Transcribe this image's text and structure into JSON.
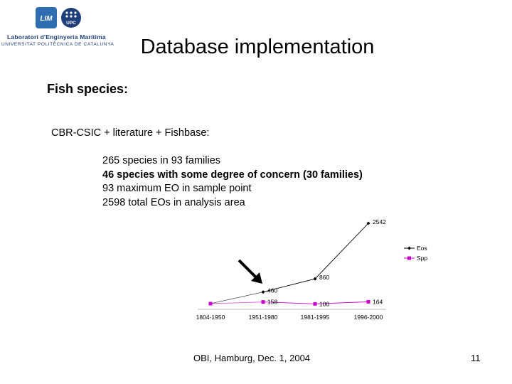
{
  "logo": {
    "name": "Laboratori d'Enginyeria Marítima",
    "sub": "UNIVERSITAT POLITÈCNICA DE CATALUNYA",
    "mark1": "LIM",
    "mark2": "UPC",
    "colors": {
      "navy": "#1f3f7a",
      "blue": "#2e6db0"
    }
  },
  "slide": {
    "title": "Database implementation",
    "heading": "Fish species:",
    "source": "CBR-CSIC + literature + Fishbase:",
    "facts": [
      "265 species in 93 families",
      "46 species with some degree of concern (30 families)",
      "93 maximum EO in sample point",
      "2598 total EOs in analysis area"
    ],
    "footer": "OBI, Hamburg, Dec. 1, 2004",
    "page_number": "11"
  },
  "chart_data": {
    "type": "line",
    "categories": [
      "1804-1950",
      "1951-1980",
      "1981-1995",
      "1996-2000"
    ],
    "series": [
      {
        "name": "Eos",
        "values": [
          null,
          460,
          860,
          2542
        ],
        "labels": [
          "",
          "460",
          "860",
          "2542"
        ],
        "color": "#000000",
        "marker": "diamond"
      },
      {
        "name": "Spp",
        "values": [
          null,
          158,
          100,
          164
        ],
        "labels": [
          "",
          "158",
          "100",
          "164"
        ],
        "color": "#cc00cc",
        "marker": "square"
      }
    ],
    "ylim": [
      0,
      2800
    ],
    "legend": "right",
    "grid": false,
    "annotation": "arrow pointing to 1951-1980"
  }
}
